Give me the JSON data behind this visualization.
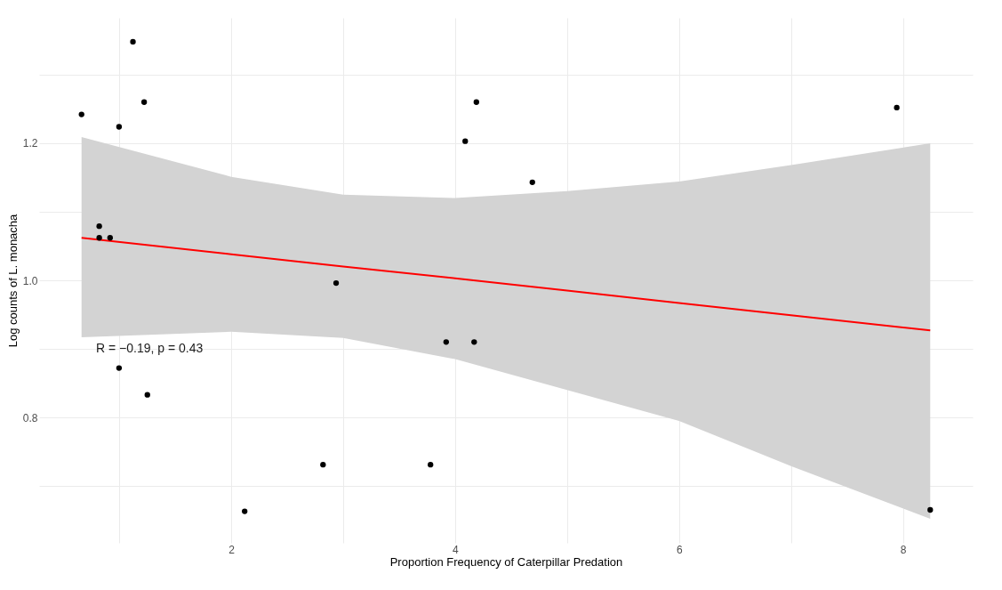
{
  "chart_data": {
    "type": "scatter",
    "xlabel": "Proportion Frequency of Caterpillar Predation",
    "ylabel": "Log counts of L. monacha",
    "annotations": [
      "R = −0.19, p = 0.43"
    ],
    "series": [
      {
        "color": "#000000",
        "marker": "circle",
        "x": [
          0.663,
          1.122,
          1.222,
          0.998,
          0.821,
          0.821,
          0.918,
          0.998,
          1.251,
          2.12,
          2.82,
          2.937,
          3.78,
          3.92,
          4.17,
          4.09,
          4.19,
          4.69,
          7.945,
          8.244
        ],
        "values": [
          1.242,
          1.348,
          1.26,
          1.224,
          1.079,
          1.062,
          1.062,
          0.872,
          0.833,
          0.663,
          0.731,
          0.996,
          0.731,
          0.91,
          0.91,
          1.203,
          1.26,
          1.143,
          1.252,
          0.665
        ]
      },
      {
        "type": "line",
        "color": "#ff0000",
        "line_style": "solid",
        "x": [
          0.663,
          2,
          3,
          4,
          5,
          6,
          7,
          8.244
        ],
        "values": [
          1.062,
          1.038,
          1.02,
          1.003,
          0.985,
          0.967,
          0.949,
          0.927
        ],
        "lower": [
          0.917,
          0.925,
          0.916,
          0.885,
          0.84,
          0.795,
          0.729,
          0.652
        ],
        "upper": [
          1.209,
          1.151,
          1.125,
          1.12,
          1.13,
          1.144,
          1.168,
          1.2
        ]
      }
    ],
    "xlim": [
      0.284,
      8.623
    ],
    "ylim": [
      0.617,
      1.383
    ],
    "xticks": [
      {
        "value": 1,
        "label": null
      },
      2,
      {
        "value": 3,
        "label": null
      },
      4,
      {
        "value": 5,
        "label": null
      },
      6,
      {
        "value": 7,
        "label": null
      },
      8
    ],
    "yticks": [
      {
        "value": 0.7,
        "label": null
      },
      {
        "value": 0.8,
        "label": "0.8"
      },
      {
        "value": 0.9,
        "label": null
      },
      {
        "value": 1.0,
        "label": "1.0"
      },
      {
        "value": 1.1,
        "label": null
      },
      {
        "value": 1.2,
        "label": "1.2"
      },
      {
        "value": 1.3,
        "label": null
      }
    ],
    "grid": true
  }
}
